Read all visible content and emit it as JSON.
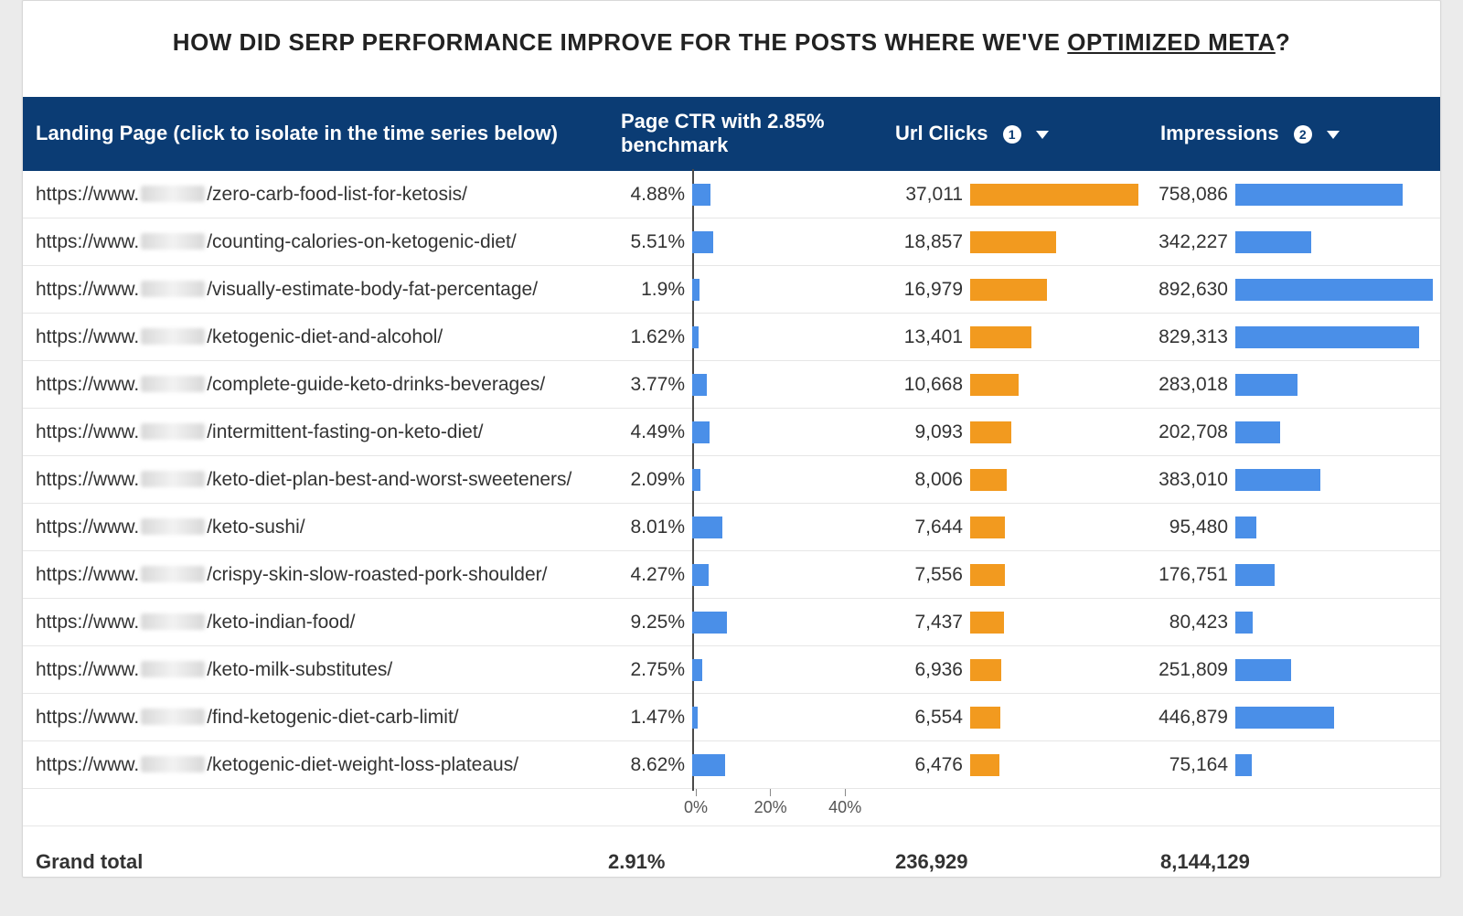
{
  "title": {
    "pre": "HOW DID SERP PERFORMANCE IMPROVE FOR THE POSTS WHERE WE'VE ",
    "link": "OPTIMIZED META",
    "post": "?"
  },
  "header": {
    "landing_page": "Landing Page (click to isolate in the time series below)",
    "ctr_line1": "Page CTR with 2.85%",
    "ctr_line2": "benchmark",
    "clicks": "Url Clicks",
    "impressions": "Impressions",
    "badge_clicks": "1",
    "badge_impressions": "2",
    "bg_color": "#0b3c74",
    "text_color": "#ffffff"
  },
  "ctr_axis": {
    "max_pct": 50,
    "ticks": [
      {
        "v": 0,
        "label": "0%"
      },
      {
        "v": 20,
        "label": "20%"
      },
      {
        "v": 40,
        "label": "40%"
      }
    ]
  },
  "bars": {
    "ctr_color": "#4a8fe8",
    "clicks_color": "#f29a1f",
    "impressions_color": "#4a8fe8",
    "clicks_max": 37011,
    "impressions_max": 892630
  },
  "url_prefix": "https://www.",
  "rows": [
    {
      "path": "/zero-carb-food-list-for-ketosis/",
      "ctr": 4.88,
      "ctr_label": "4.88%",
      "clicks": 37011,
      "clicks_label": "37,011",
      "impr": 758086,
      "impr_label": "758,086"
    },
    {
      "path": "/counting-calories-on-ketogenic-diet/",
      "ctr": 5.51,
      "ctr_label": "5.51%",
      "clicks": 18857,
      "clicks_label": "18,857",
      "impr": 342227,
      "impr_label": "342,227"
    },
    {
      "path": "/visually-estimate-body-fat-percentage/",
      "ctr": 1.9,
      "ctr_label": "1.9%",
      "clicks": 16979,
      "clicks_label": "16,979",
      "impr": 892630,
      "impr_label": "892,630"
    },
    {
      "path": "/ketogenic-diet-and-alcohol/",
      "ctr": 1.62,
      "ctr_label": "1.62%",
      "clicks": 13401,
      "clicks_label": "13,401",
      "impr": 829313,
      "impr_label": "829,313"
    },
    {
      "path": "/complete-guide-keto-drinks-beverages/",
      "ctr": 3.77,
      "ctr_label": "3.77%",
      "clicks": 10668,
      "clicks_label": "10,668",
      "impr": 283018,
      "impr_label": "283,018"
    },
    {
      "path": "/intermittent-fasting-on-keto-diet/",
      "ctr": 4.49,
      "ctr_label": "4.49%",
      "clicks": 9093,
      "clicks_label": "9,093",
      "impr": 202708,
      "impr_label": "202,708"
    },
    {
      "path": "/keto-diet-plan-best-and-worst-sweeteners/",
      "ctr": 2.09,
      "ctr_label": "2.09%",
      "clicks": 8006,
      "clicks_label": "8,006",
      "impr": 383010,
      "impr_label": "383,010"
    },
    {
      "path": "/keto-sushi/",
      "ctr": 8.01,
      "ctr_label": "8.01%",
      "clicks": 7644,
      "clicks_label": "7,644",
      "impr": 95480,
      "impr_label": "95,480"
    },
    {
      "path": "/crispy-skin-slow-roasted-pork-shoulder/",
      "ctr": 4.27,
      "ctr_label": "4.27%",
      "clicks": 7556,
      "clicks_label": "7,556",
      "impr": 176751,
      "impr_label": "176,751"
    },
    {
      "path": "/keto-indian-food/",
      "ctr": 9.25,
      "ctr_label": "9.25%",
      "clicks": 7437,
      "clicks_label": "7,437",
      "impr": 80423,
      "impr_label": "80,423"
    },
    {
      "path": "/keto-milk-substitutes/",
      "ctr": 2.75,
      "ctr_label": "2.75%",
      "clicks": 6936,
      "clicks_label": "6,936",
      "impr": 251809,
      "impr_label": "251,809"
    },
    {
      "path": "/find-ketogenic-diet-carb-limit/",
      "ctr": 1.47,
      "ctr_label": "1.47%",
      "clicks": 6554,
      "clicks_label": "6,554",
      "impr": 446879,
      "impr_label": "446,879"
    },
    {
      "path": "/ketogenic-diet-weight-loss-plateaus/",
      "ctr": 8.62,
      "ctr_label": "8.62%",
      "clicks": 6476,
      "clicks_label": "6,476",
      "impr": 75164,
      "impr_label": "75,164"
    }
  ],
  "grand_total": {
    "label": "Grand total",
    "ctr": "2.91%",
    "clicks": "236,929",
    "impressions": "8,144,129"
  }
}
